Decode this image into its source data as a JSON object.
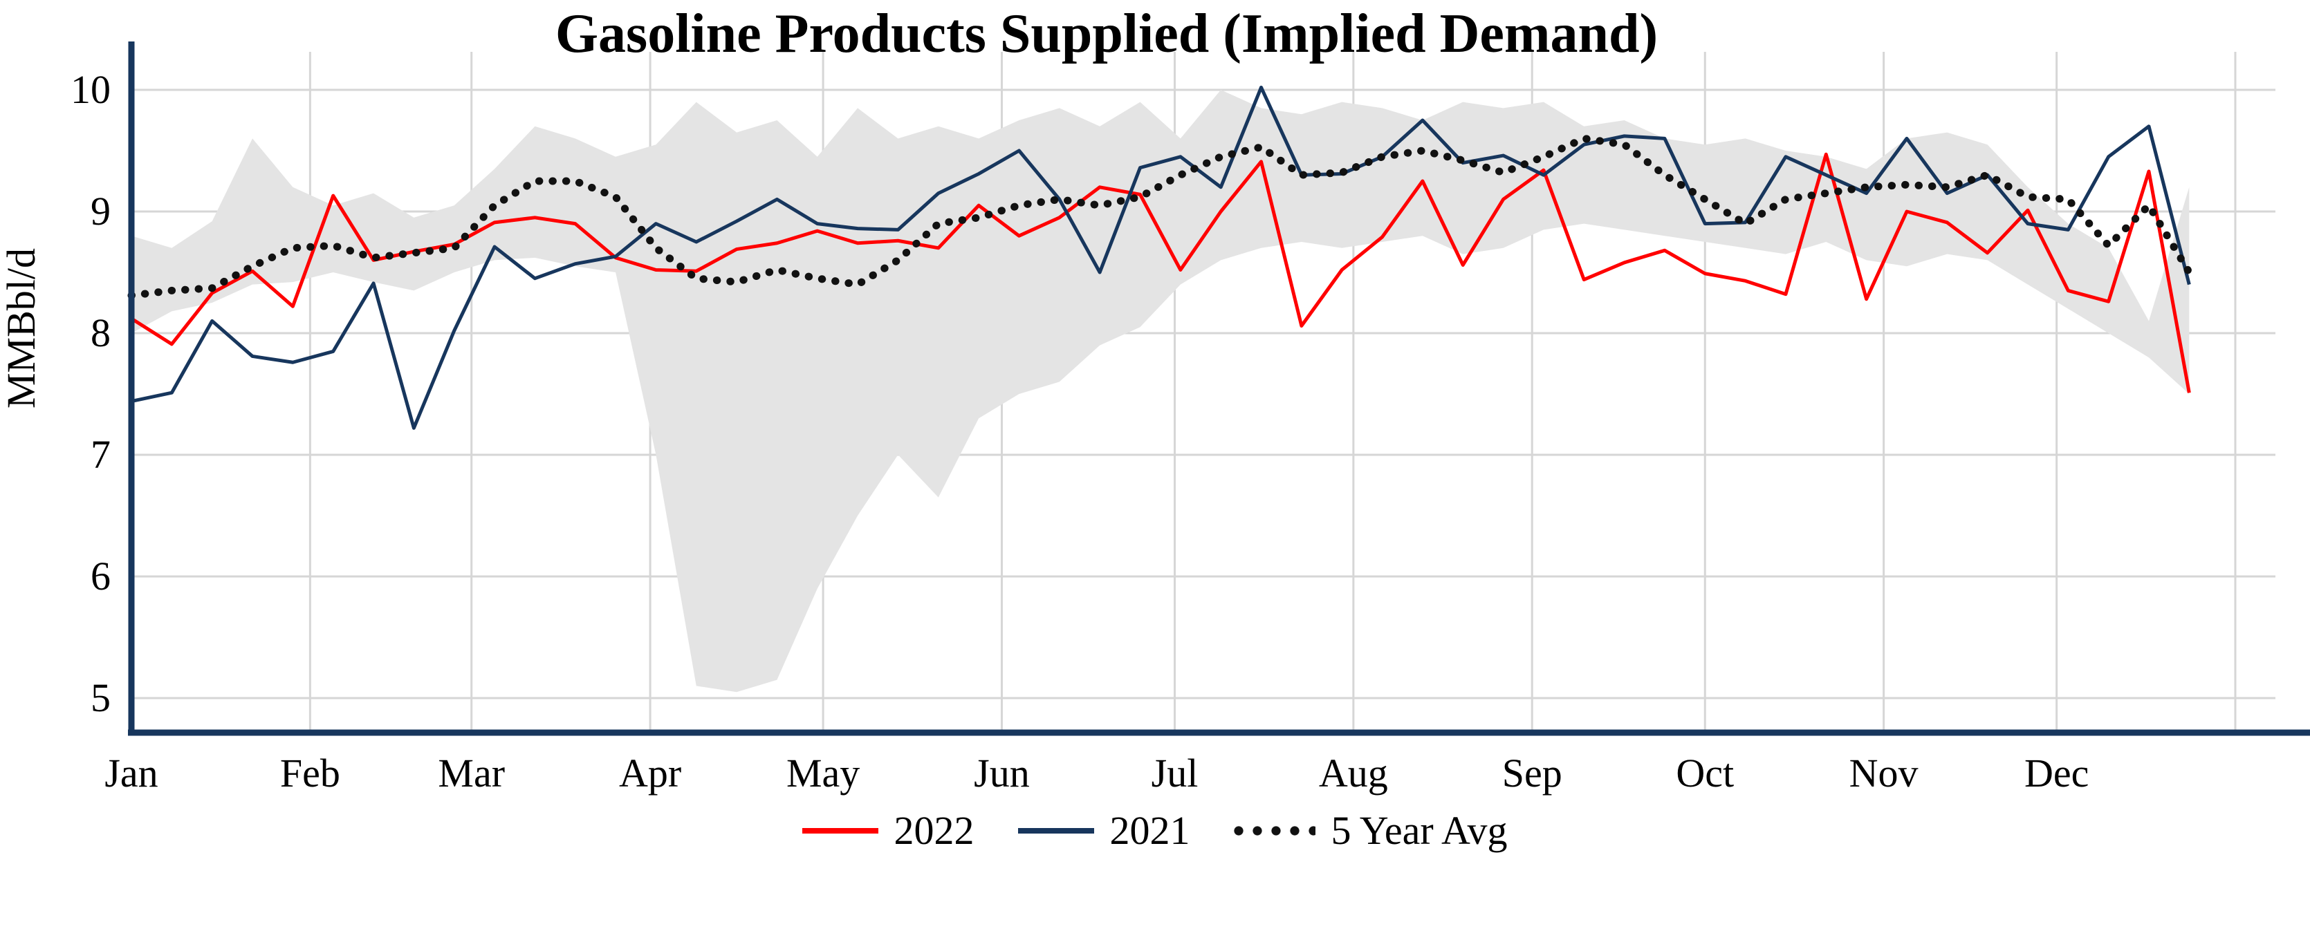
{
  "page": {
    "background": "#ffffff"
  },
  "chart_data": {
    "type": "line",
    "title": "Gasoline Products Supplied (Implied Demand)",
    "ylabel": "MMBbl/d",
    "xlabel": "",
    "ylim": [
      4.7,
      10.3
    ],
    "yticks": [
      5,
      6,
      7,
      8,
      9,
      10
    ],
    "grid": true,
    "legend_position": "bottom",
    "x_unit": "weekly",
    "month_labels": [
      "Jan",
      "Feb",
      "Mar",
      "Apr",
      "May",
      "Jun",
      "Jul",
      "Aug",
      "Sep",
      "Oct",
      "Nov",
      "Dec"
    ],
    "month_start_days": [
      0,
      31,
      59,
      90,
      120,
      151,
      181,
      212,
      243,
      273,
      304,
      334
    ],
    "colors": {
      "y2022": "#ff0000",
      "y2021": "#17365d",
      "avg5": "#111111",
      "band": "#e4e4e4",
      "grid": "#d6d6d6",
      "axis": "#17365d"
    },
    "band": {
      "max": [
        8.8,
        8.7,
        8.92,
        9.6,
        9.2,
        9.05,
        9.15,
        8.95,
        9.05,
        9.35,
        9.7,
        9.6,
        9.45,
        9.55,
        9.9,
        9.65,
        9.75,
        9.45,
        9.85,
        9.6,
        9.7,
        9.6,
        9.75,
        9.85,
        9.7,
        9.9,
        9.6,
        10.0,
        9.85,
        9.8,
        9.9,
        9.85,
        9.75,
        9.9,
        9.85,
        9.9,
        9.7,
        9.75,
        9.6,
        9.55,
        9.6,
        9.5,
        9.45,
        9.35,
        9.6,
        9.65,
        9.55,
        9.2,
        8.9,
        8.7,
        8.1,
        9.2
      ],
      "min": [
        8.0,
        8.18,
        8.25,
        8.4,
        8.42,
        8.5,
        8.42,
        8.35,
        8.5,
        8.6,
        8.62,
        8.55,
        8.5,
        7.0,
        5.1,
        5.05,
        5.15,
        5.9,
        6.5,
        7.0,
        6.65,
        7.3,
        7.5,
        7.6,
        7.9,
        8.05,
        8.4,
        8.6,
        8.7,
        8.75,
        8.7,
        8.75,
        8.8,
        8.65,
        8.7,
        8.85,
        8.9,
        8.85,
        8.8,
        8.75,
        8.7,
        8.65,
        8.75,
        8.6,
        8.55,
        8.65,
        8.6,
        8.4,
        8.2,
        8.0,
        7.8,
        7.5
      ]
    },
    "series": [
      {
        "name": "2022",
        "style": "solid",
        "color_key": "y2022",
        "values": [
          8.12,
          7.91,
          8.33,
          8.51,
          8.22,
          9.13,
          8.6,
          8.67,
          8.73,
          8.91,
          8.95,
          8.9,
          8.62,
          8.52,
          8.51,
          8.69,
          8.74,
          8.84,
          8.74,
          8.76,
          8.7,
          9.05,
          8.8,
          8.95,
          9.2,
          9.14,
          8.52,
          9.0,
          9.41,
          8.06,
          8.52,
          8.79,
          9.25,
          8.56,
          9.1,
          9.34,
          8.44,
          8.58,
          8.68,
          8.49,
          8.43,
          8.32,
          9.47,
          8.28,
          9.0,
          8.91,
          8.66,
          9.01,
          8.35,
          8.26,
          9.33,
          7.51
        ]
      },
      {
        "name": "2021",
        "style": "solid",
        "color_key": "y2021",
        "values": [
          7.44,
          7.51,
          8.1,
          7.81,
          7.76,
          7.85,
          8.41,
          7.22,
          8.02,
          8.71,
          8.45,
          8.57,
          8.63,
          8.9,
          8.75,
          8.92,
          9.1,
          8.9,
          8.86,
          8.85,
          9.15,
          9.31,
          9.5,
          9.1,
          8.5,
          9.36,
          9.45,
          9.2,
          10.02,
          9.3,
          9.31,
          9.45,
          9.75,
          9.4,
          9.46,
          9.3,
          9.55,
          9.62,
          9.6,
          8.9,
          8.91,
          9.45,
          9.3,
          9.15,
          9.6,
          9.15,
          9.3,
          8.9,
          8.85,
          9.45,
          9.7,
          8.4
        ]
      },
      {
        "name": "5 Year Avg",
        "style": "dotted",
        "color_key": "avg5",
        "values": [
          8.31,
          8.35,
          8.37,
          8.55,
          8.7,
          8.72,
          8.62,
          8.66,
          8.7,
          9.05,
          9.25,
          9.25,
          9.12,
          8.7,
          8.45,
          8.42,
          8.52,
          8.45,
          8.4,
          8.6,
          8.9,
          8.95,
          9.05,
          9.1,
          9.05,
          9.12,
          9.3,
          9.45,
          9.53,
          9.3,
          9.32,
          9.45,
          9.5,
          9.42,
          9.32,
          9.45,
          9.6,
          9.55,
          9.3,
          9.1,
          8.9,
          9.1,
          9.15,
          9.2,
          9.22,
          9.2,
          9.3,
          9.12,
          9.1,
          8.72,
          9.05,
          8.5
        ]
      }
    ]
  }
}
